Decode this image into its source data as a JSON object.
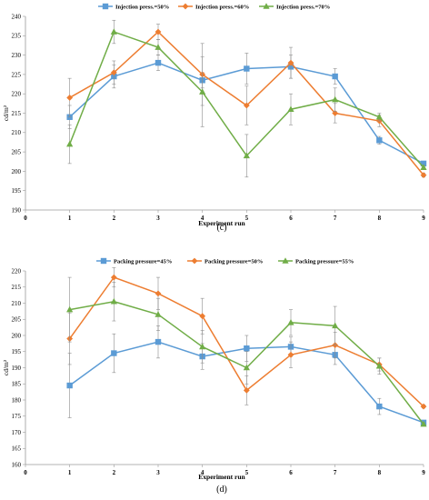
{
  "chart_data": [
    {
      "type": "line",
      "caption": "(c)",
      "xlabel": "Experiment run",
      "ylabel": "cd/m²",
      "xlim": [
        0,
        9
      ],
      "ylim": [
        190,
        240
      ],
      "yticks": [
        190,
        195,
        200,
        205,
        210,
        215,
        220,
        225,
        230,
        235,
        240
      ],
      "xticks": [
        0,
        1,
        2,
        3,
        4,
        5,
        6,
        7,
        8,
        9
      ],
      "legend_position": "top",
      "grid": false,
      "x": [
        1,
        2,
        3,
        4,
        5,
        6,
        7,
        8,
        9
      ],
      "series": [
        {
          "name": "Injection press.=50%",
          "color": "#5b9bd5",
          "marker": "square",
          "values": [
            214,
            224.5,
            228,
            223.5,
            226.5,
            227,
            224.5,
            208,
            202
          ],
          "err": [
            3,
            3,
            2,
            2,
            4,
            3,
            2,
            1,
            0.5
          ]
        },
        {
          "name": "Injection press.=60%",
          "color": "#ed7d31",
          "marker": "diamond",
          "values": [
            219,
            225.5,
            236,
            225,
            217,
            228,
            215,
            213,
            199
          ],
          "err": [
            5,
            3,
            2,
            8,
            5,
            4,
            2.5,
            1.5,
            0.5
          ]
        },
        {
          "name": "Injection press.=70%",
          "color": "#70ad47",
          "marker": "triangle",
          "values": [
            207,
            236,
            232,
            220.5,
            204,
            216,
            218.5,
            214,
            201
          ],
          "err": [
            5,
            3,
            2,
            9,
            5.5,
            4,
            3,
            1,
            0.5
          ]
        }
      ]
    },
    {
      "type": "line",
      "caption": "(d)",
      "xlabel": "Experiment run",
      "ylabel": "cd/m²",
      "xlim": [
        0,
        9
      ],
      "ylim": [
        160,
        220
      ],
      "yticks": [
        160,
        165,
        170,
        175,
        180,
        185,
        190,
        195,
        200,
        205,
        210,
        215,
        220
      ],
      "xticks": [
        0,
        1,
        2,
        3,
        4,
        5,
        6,
        7,
        8,
        9
      ],
      "legend_position": "top",
      "grid": false,
      "x": [
        1,
        2,
        3,
        4,
        5,
        6,
        7,
        8,
        9
      ],
      "series": [
        {
          "name": "Packing pressure=45%",
          "color": "#5b9bd5",
          "marker": "square",
          "values": [
            184.5,
            194.5,
            198,
            193.5,
            196,
            196.5,
            194,
            178,
            173
          ],
          "err": [
            10,
            6,
            5,
            4,
            4,
            3,
            3,
            2.5,
            0.5
          ]
        },
        {
          "name": "Packing pressure=50%",
          "color": "#ed7d31",
          "marker": "diamond",
          "values": [
            199,
            218,
            213,
            206,
            183,
            194,
            197,
            191,
            178
          ],
          "err": [
            8,
            3,
            5,
            5.5,
            4.5,
            4,
            4,
            2,
            0.5
          ]
        },
        {
          "name": "Packing pressure=55%",
          "color": "#70ad47",
          "marker": "triangle",
          "values": [
            208,
            210.5,
            206.5,
            196.5,
            190,
            204,
            203,
            190.5,
            172.5
          ],
          "err": [
            10,
            6,
            5,
            5,
            5,
            4,
            6,
            2.5,
            0.5
          ]
        }
      ]
    }
  ]
}
